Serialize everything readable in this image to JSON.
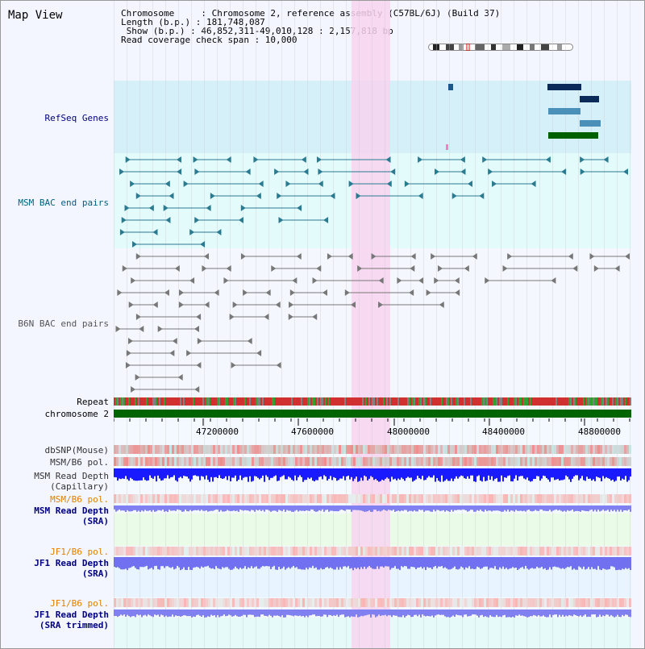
{
  "view": {
    "title": "Map View",
    "info": [
      "Chromosome     : Chromosome 2, reference assembly (C57BL/6J) (Build 37)",
      "Length (b.p.) : 181,748,087",
      " Show (b.p.) : 46,852,311-49,010,128 : 2,157,818 bp",
      "Read coverage check span : 10,000"
    ]
  },
  "track_labels": {
    "refseq": "RefSeq Genes",
    "msm_bac": "MSM BAC end pairs",
    "b6n_bac": "B6N BAC end pairs",
    "repeat": "Repeat",
    "chromosome": "chromosome 2",
    "dbsnp": "dbSNP(Mouse)",
    "msm_b6_pol_1": "MSM/B6 pol.",
    "msm_depth_cap_1": "MSM Read Depth",
    "msm_depth_cap_2": "(Capillary)",
    "msm_b6_pol_2": "MSM/B6 pol.",
    "msm_depth_sra_1": "MSM Read Depth",
    "msm_depth_sra_2": "(SRA)",
    "jf1_b6_pol_1": "JF1/B6 pol.",
    "jf1_depth_sra_1": "JF1 Read Depth",
    "jf1_depth_sra_2": "(SRA)",
    "jf1_b6_pol_2": "JF1/B6 pol.",
    "jf1_depth_trim_1": "JF1 Read Depth",
    "jf1_depth_trim_2": "(SRA trimmed)"
  },
  "ruler": {
    "ticks": [
      "47200000",
      "47600000",
      "48000000",
      "48400000",
      "48800000"
    ]
  },
  "colors": {
    "label_dark_blue": "#000080",
    "label_orange": "#e08000",
    "refseq_bg": "#d4eef8",
    "msm_bg": "#e2fcfc",
    "highlight": "#f8d8f0",
    "chromosome_bar": "#006400",
    "depth_blue": "#1a1aff",
    "depth_light": "#8888ff"
  }
}
